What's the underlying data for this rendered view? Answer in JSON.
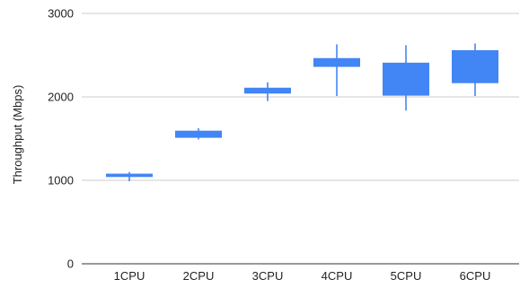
{
  "chart_data": {
    "type": "candlestick",
    "title": "",
    "xlabel": "",
    "ylabel": "Throughput (Mbps)",
    "ylim": [
      0,
      3000
    ],
    "y_ticks": [
      {
        "value": 0,
        "label": "0"
      },
      {
        "value": 1000,
        "label": "1000"
      },
      {
        "value": 2000,
        "label": "2000"
      },
      {
        "value": 3000,
        "label": "3000"
      }
    ],
    "grid": true,
    "legend": "none",
    "color": "#4285f4",
    "categories": [
      "1CPU",
      "2CPU",
      "3CPU",
      "4CPU",
      "5CPU",
      "6CPU"
    ],
    "series": [
      {
        "points": [
          {
            "low": 990,
            "open": 1040,
            "close": 1080,
            "high": 1100
          },
          {
            "low": 1490,
            "open": 1510,
            "close": 1595,
            "high": 1625
          },
          {
            "low": 1950,
            "open": 2040,
            "close": 2110,
            "high": 2175
          },
          {
            "low": 2010,
            "open": 2360,
            "close": 2465,
            "high": 2630
          },
          {
            "low": 1835,
            "open": 2015,
            "close": 2410,
            "high": 2620
          },
          {
            "low": 2010,
            "open": 2165,
            "close": 2560,
            "high": 2640
          }
        ]
      }
    ]
  }
}
